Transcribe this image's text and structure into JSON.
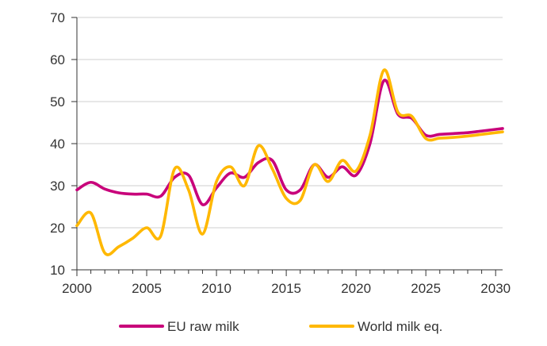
{
  "chart_data": {
    "type": "line",
    "title": "",
    "xlabel": "",
    "ylabel": "",
    "xlim": [
      2000,
      2030.5
    ],
    "ylim": [
      10,
      70
    ],
    "x_ticks": [
      2000,
      2005,
      2010,
      2015,
      2020,
      2025,
      2030
    ],
    "y_ticks": [
      10,
      20,
      30,
      40,
      50,
      60,
      70
    ],
    "grid": "horizontal",
    "legend_position": "bottom",
    "series": [
      {
        "name": "EU raw milk",
        "color": "#c8007a",
        "x": [
          2000,
          2001,
          2002,
          2003,
          2004,
          2005,
          2006,
          2007,
          2008,
          2009,
          2010,
          2011,
          2012,
          2013,
          2014,
          2015,
          2016,
          2017,
          2018,
          2019,
          2020,
          2021,
          2022,
          2023,
          2024,
          2025,
          2026,
          2027,
          2028,
          2029,
          2030,
          2030.5
        ],
        "values": [
          29,
          30.8,
          29.2,
          28.3,
          28,
          28,
          27.5,
          32,
          32.5,
          25.5,
          29.5,
          33,
          32,
          35.5,
          36,
          29,
          29,
          35,
          32,
          34.5,
          32.5,
          40,
          55,
          47,
          46,
          42,
          42.2,
          42.4,
          42.6,
          43,
          43.4,
          43.6
        ]
      },
      {
        "name": "World milk eq.",
        "color": "#ffb800",
        "x": [
          2000,
          2001,
          2002,
          2003,
          2004,
          2005,
          2006,
          2007,
          2008,
          2009,
          2010,
          2011,
          2012,
          2013,
          2014,
          2015,
          2016,
          2017,
          2018,
          2019,
          2020,
          2021,
          2022,
          2023,
          2024,
          2025,
          2026,
          2027,
          2028,
          2029,
          2030,
          2030.5
        ],
        "values": [
          20.5,
          23.5,
          14,
          15.5,
          17.5,
          20,
          18,
          34,
          29,
          18.5,
          31,
          34.5,
          30,
          39.5,
          34,
          27,
          26.5,
          35,
          31,
          36,
          33.5,
          42,
          57.5,
          47.5,
          46.5,
          41.2,
          41.3,
          41.5,
          41.8,
          42.2,
          42.6,
          42.8
        ]
      }
    ]
  }
}
